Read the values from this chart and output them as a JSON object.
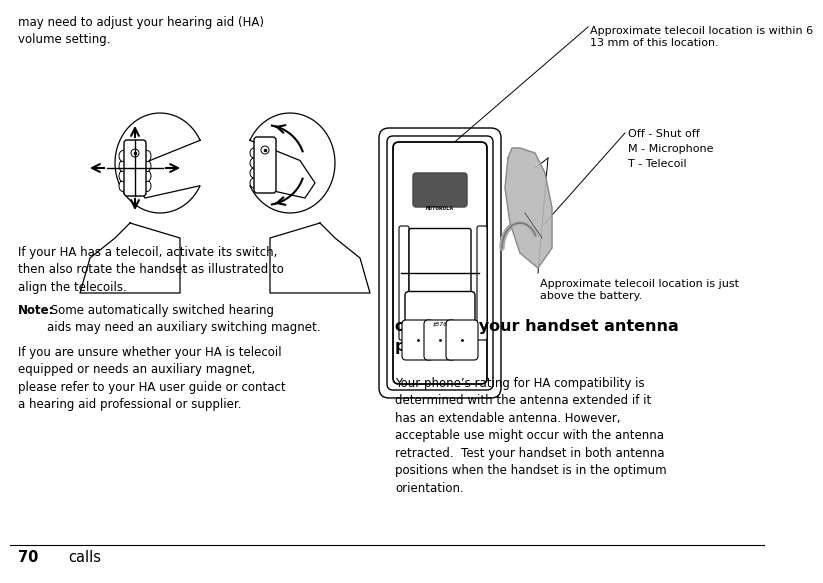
{
  "background_color": "#ffffff",
  "page_number": "70",
  "page_label": "calls",
  "left_column": {
    "top_text": "may need to adjust your hearing aid (HA)\nvolume setting.",
    "bottom_text1": "If your HA has a telecoil, activate its switch,\nthen also rotate the handset as illustrated to\nalign the telecoils.",
    "note_bold": "Note:",
    "note_text": " Some automatically switched hearing\naids may need an auxiliary switching magnet.",
    "bottom_text2": "If you are unsure whether your HA is telecoil\nequipped or needs an auxiliary magnet,\nplease refer to your HA user guide or contact\na hearing aid professional or supplier."
  },
  "right_column": {
    "title": "optimize your handset antenna\nposition",
    "body": "Your phone’s rating for HA compatibility is\ndetermined with the antenna extended if it\nhas an extendable antenna. However,\nacceptable use might occur with the antenna\nretracted.  Test your handset in both antenna\npositions when the handset is in the optimum\norientation.",
    "annotation_top": "Approximate telecoil location is within 6\n13 mm of this location.",
    "annotation_mid1": "Off - Shut off",
    "annotation_mid2": "M - Microphone",
    "annotation_mid3": "T - Telecoil",
    "annotation_bot": "Approximate telecoil location is just\nabove the battery."
  },
  "font_size_body": 8.5,
  "font_size_title": 11.5,
  "font_size_page": 10.5
}
